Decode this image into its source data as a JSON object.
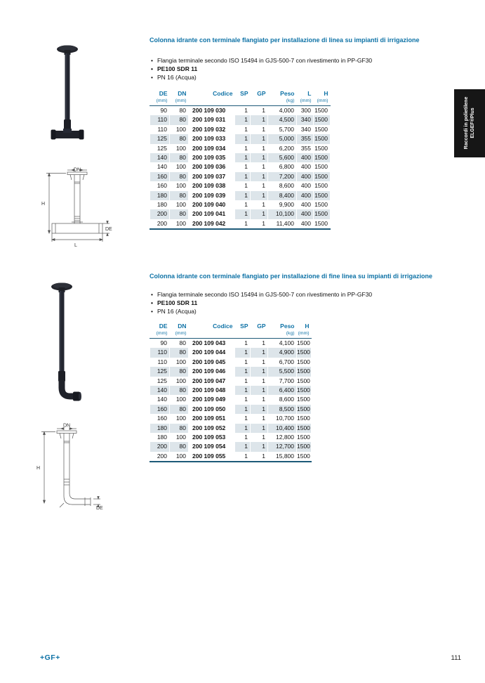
{
  "colors": {
    "accent": "#0e72a6",
    "rule": "#1d5a78",
    "stripe": "#dde5ea",
    "tab_bg": "#161616"
  },
  "side_tab": {
    "line1": "Raccordi in polietilene",
    "line2": "ELGEF®Plus"
  },
  "footer": {
    "brand": "+GF+",
    "page_number": "111"
  },
  "sections": [
    {
      "title": "Colonna idrante con terminale flangiato per installazione di linea su impianti di irrigazione",
      "bullets": [
        {
          "text": "Flangia terminale secondo ISO 15494 in GJS-500-7 con rivestimento in PP-GF30",
          "bold": false
        },
        {
          "text": "PE100 SDR 11",
          "bold": true
        },
        {
          "text": "PN 16 (Acqua)",
          "bold": false
        }
      ],
      "drawing": {
        "dn": "DN",
        "h": "H",
        "de": "DE",
        "l": "L"
      },
      "table": {
        "headers": [
          {
            "label": "DE",
            "unit": "(mm)"
          },
          {
            "label": "DN",
            "unit": "(mm)"
          },
          {
            "label": "Codice",
            "unit": ""
          },
          {
            "label": "SP",
            "unit": ""
          },
          {
            "label": "GP",
            "unit": ""
          },
          {
            "label": "Peso",
            "unit": "(kg)"
          },
          {
            "label": "L",
            "unit": "(mm)"
          },
          {
            "label": "H",
            "unit": "(mm)"
          }
        ],
        "rows": [
          [
            "90",
            "80",
            "200 109 030",
            "1",
            "1",
            "4,000",
            "300",
            "1500"
          ],
          [
            "110",
            "80",
            "200 109 031",
            "1",
            "1",
            "4,500",
            "340",
            "1500"
          ],
          [
            "110",
            "100",
            "200 109 032",
            "1",
            "1",
            "5,700",
            "340",
            "1500"
          ],
          [
            "125",
            "80",
            "200 109 033",
            "1",
            "1",
            "5,000",
            "355",
            "1500"
          ],
          [
            "125",
            "100",
            "200 109 034",
            "1",
            "1",
            "6,200",
            "355",
            "1500"
          ],
          [
            "140",
            "80",
            "200 109 035",
            "1",
            "1",
            "5,600",
            "400",
            "1500"
          ],
          [
            "140",
            "100",
            "200 109 036",
            "1",
            "1",
            "6,800",
            "400",
            "1500"
          ],
          [
            "160",
            "80",
            "200 109 037",
            "1",
            "1",
            "7,200",
            "400",
            "1500"
          ],
          [
            "160",
            "100",
            "200 109 038",
            "1",
            "1",
            "8,600",
            "400",
            "1500"
          ],
          [
            "180",
            "80",
            "200 109 039",
            "1",
            "1",
            "8,400",
            "400",
            "1500"
          ],
          [
            "180",
            "100",
            "200 109 040",
            "1",
            "1",
            "9,900",
            "400",
            "1500"
          ],
          [
            "200",
            "80",
            "200 109 041",
            "1",
            "1",
            "10,100",
            "400",
            "1500"
          ],
          [
            "200",
            "100",
            "200 109 042",
            "1",
            "1",
            "11,400",
            "400",
            "1500"
          ]
        ]
      }
    },
    {
      "title": "Colonna idrante con terminale flangiato per installazione di fine linea su impianti di irrigazione",
      "bullets": [
        {
          "text": "Flangia terminale secondo ISO 15494 in GJS-500-7 con rivestimento in PP-GF30",
          "bold": false
        },
        {
          "text": "PE100 SDR 11",
          "bold": true
        },
        {
          "text": "PN 16 (Acqua)",
          "bold": false
        }
      ],
      "drawing": {
        "dn": "DN",
        "h": "H",
        "de": "DE"
      },
      "table": {
        "headers": [
          {
            "label": "DE",
            "unit": "(mm)"
          },
          {
            "label": "DN",
            "unit": "(mm)"
          },
          {
            "label": "Codice",
            "unit": ""
          },
          {
            "label": "SP",
            "unit": ""
          },
          {
            "label": "GP",
            "unit": ""
          },
          {
            "label": "Peso",
            "unit": "(kg)"
          },
          {
            "label": "H",
            "unit": "(mm)"
          }
        ],
        "rows": [
          [
            "90",
            "80",
            "200 109 043",
            "1",
            "1",
            "4,100",
            "1500"
          ],
          [
            "110",
            "80",
            "200 109 044",
            "1",
            "1",
            "4,900",
            "1500"
          ],
          [
            "110",
            "100",
            "200 109 045",
            "1",
            "1",
            "6,700",
            "1500"
          ],
          [
            "125",
            "80",
            "200 109 046",
            "1",
            "1",
            "5,500",
            "1500"
          ],
          [
            "125",
            "100",
            "200 109 047",
            "1",
            "1",
            "7,700",
            "1500"
          ],
          [
            "140",
            "80",
            "200 109 048",
            "1",
            "1",
            "6,400",
            "1500"
          ],
          [
            "140",
            "100",
            "200 109 049",
            "1",
            "1",
            "8,600",
            "1500"
          ],
          [
            "160",
            "80",
            "200 109 050",
            "1",
            "1",
            "8,500",
            "1500"
          ],
          [
            "160",
            "100",
            "200 109 051",
            "1",
            "1",
            "10,700",
            "1500"
          ],
          [
            "180",
            "80",
            "200 109 052",
            "1",
            "1",
            "10,400",
            "1500"
          ],
          [
            "180",
            "100",
            "200 109 053",
            "1",
            "1",
            "12,800",
            "1500"
          ],
          [
            "200",
            "80",
            "200 109 054",
            "1",
            "1",
            "12,700",
            "1500"
          ],
          [
            "200",
            "100",
            "200 109 055",
            "1",
            "1",
            "15,800",
            "1500"
          ]
        ]
      }
    }
  ]
}
